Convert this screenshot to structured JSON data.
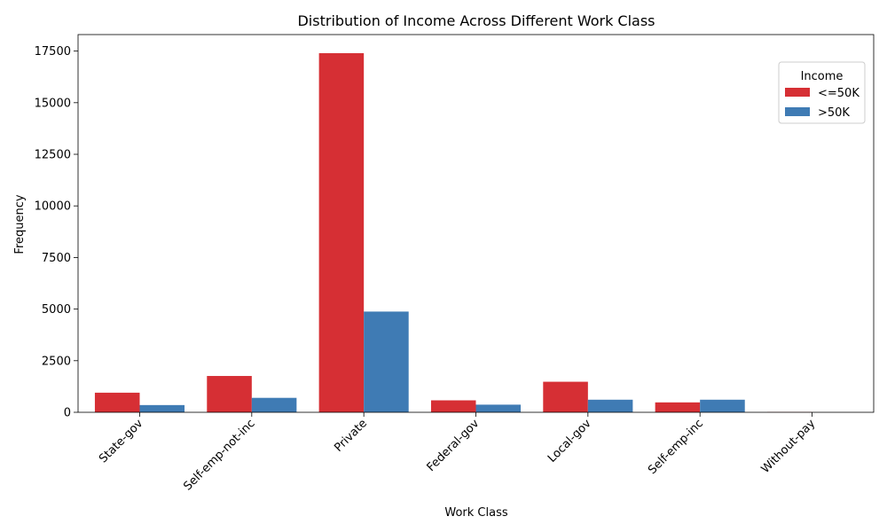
{
  "chart_data": {
    "type": "bar",
    "title": "Distribution of Income Across Different Work Class",
    "xlabel": "Work Class",
    "ylabel": "Frequency",
    "categories": [
      "State-gov",
      "Self-emp-not-inc",
      "Private",
      "Federal-gov",
      "Local-gov",
      "Self-emp-inc",
      "Without-pay"
    ],
    "series": [
      {
        "name": "<=50K",
        "color": "#d62f34",
        "values": [
          950,
          1760,
          17400,
          580,
          1480,
          480,
          12
        ]
      },
      {
        "name": ">50K",
        "color": "#3f7bb4",
        "values": [
          350,
          700,
          4880,
          370,
          610,
          610,
          0
        ]
      }
    ],
    "ylim": [
      0,
      18300
    ],
    "yticks": [
      0,
      2500,
      5000,
      7500,
      10000,
      12500,
      15000,
      17500
    ],
    "grid": false,
    "legend": {
      "title": "Income",
      "placement": "top-right"
    }
  }
}
